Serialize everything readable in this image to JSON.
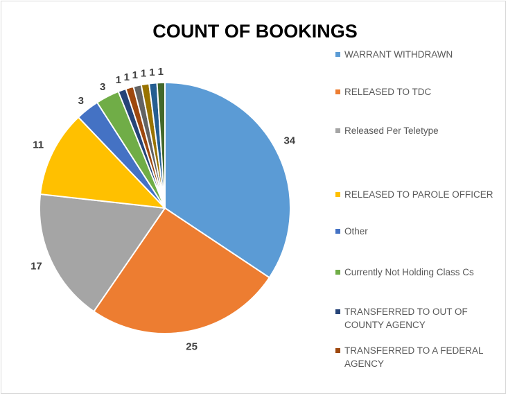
{
  "chart_data": {
    "type": "pie",
    "title": "COUNT OF BOOKINGS",
    "categories": [
      "WARRANT WITHDRAWN",
      "RELEASED TO TDC",
      "Released Per Teletype",
      "RELEASED TO PAROLE OFFICER",
      "Other",
      "Currently Not Holding Class Cs",
      "TRANSFERRED TO OUT OF COUNTY AGENCY",
      "TRANSFERRED TO A FEDERAL AGENCY",
      null,
      null,
      null,
      null
    ],
    "values": [
      34,
      25,
      17,
      11,
      3,
      3,
      1,
      1,
      1,
      1,
      1,
      1
    ],
    "colors": [
      "#5B9BD5",
      "#ED7D31",
      "#A5A5A5",
      "#FFC000",
      "#4472C4",
      "#70AD47",
      "#264478",
      "#9E480E",
      "#636363",
      "#997300",
      "#255E91",
      "#43682B"
    ],
    "legend": "right"
  }
}
